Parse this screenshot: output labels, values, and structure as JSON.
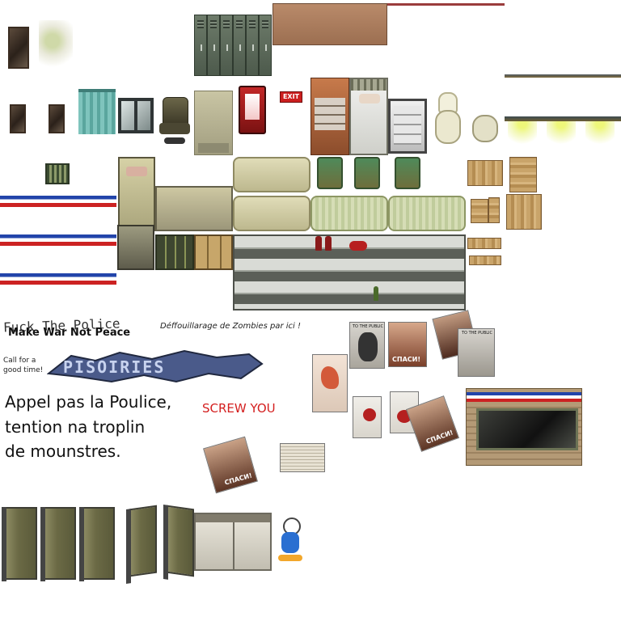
{
  "sheet": {
    "type": "RPG tileset sprite sheet",
    "background": "#ffffff",
    "palette": {
      "flag_blue": "#2244aa",
      "flag_white": "#ffffff",
      "flag_red": "#cc2222",
      "exit_red": "#cc1f1f",
      "light_green": "#e8f27a",
      "graffiti_blue": "#4a5a8a",
      "screw_red": "#d42020"
    },
    "signs": {
      "exit": "EXIT"
    },
    "graffiti": {
      "fuck_police": "Fuck The Police",
      "make_war": "Make War Not Peace",
      "call_for": "Call for a good time!",
      "zombies": "Déffouillarage de Zombies par ici !",
      "appel_line1": "Appel pas la Poulice,",
      "appel_line2": "tention na troplin",
      "appel_line3": "de mounstres.",
      "screw_you": "SCREW YOU",
      "tag": "PISOIRIES"
    },
    "posters": {
      "to_the_public": "TO THE PUBLIC",
      "spasi": "СПАСИ!"
    },
    "icons": [
      "mirror-icon",
      "locker-icon",
      "curtain-icon",
      "window-icon",
      "office-chair-icon",
      "vending-machine-icon",
      "exit-sign-icon",
      "bed-icon",
      "fridge-icon",
      "toilet-icon",
      "ceiling-light-icon",
      "vent-icon",
      "sofa-icon",
      "green-chair-icon",
      "wood-plank-icon",
      "bottle-icon",
      "toilet-stall-icon",
      "washing-machine-icon",
      "duck-sprite-icon"
    ]
  }
}
